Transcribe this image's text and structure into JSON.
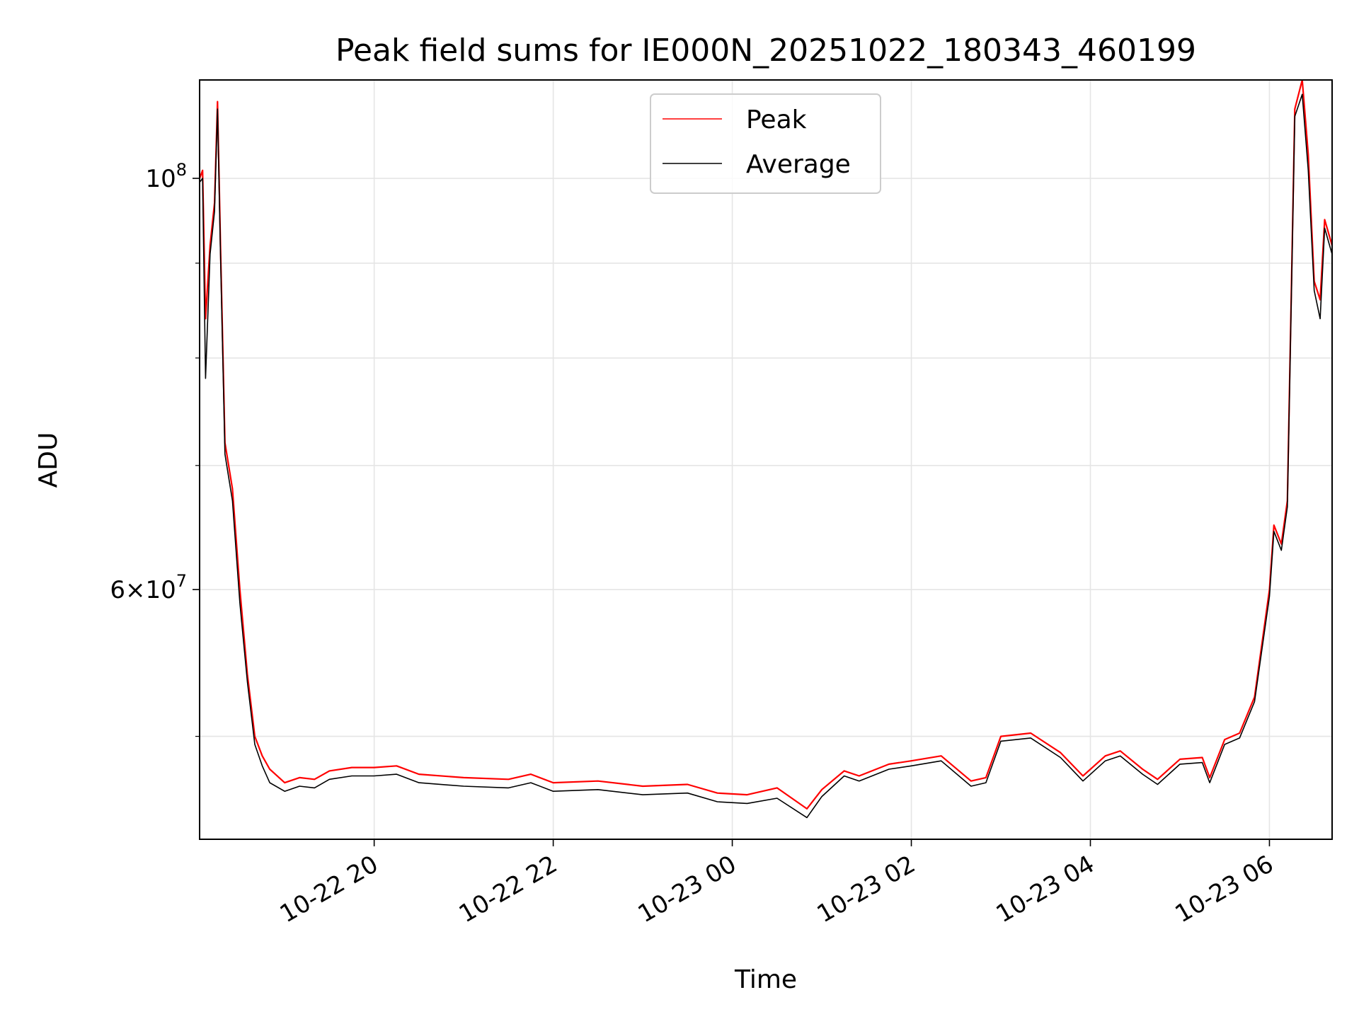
{
  "chart_data": {
    "type": "line",
    "title": "Peak field sums for IE000N_20251022_180343_460199",
    "xlabel": "Time",
    "ylabel": "ADU",
    "yscale": "log",
    "ylim": [
      44000000,
      113000000
    ],
    "xlim": [
      "2025-10-22 18:03",
      "2025-10-23 06:42"
    ],
    "grid": true,
    "legend": {
      "loc": "upper center"
    },
    "x_ticks": [
      {
        "t": "2025-10-22 20:00",
        "label": "10-22 20"
      },
      {
        "t": "2025-10-22 22:00",
        "label": "10-22 22"
      },
      {
        "t": "2025-10-23 00:00",
        "label": "10-23 00"
      },
      {
        "t": "2025-10-23 02:00",
        "label": "10-23 02"
      },
      {
        "t": "2025-10-23 04:00",
        "label": "10-23 04"
      },
      {
        "t": "2025-10-23 06:00",
        "label": "10-23 06"
      }
    ],
    "y_ticks_major": [
      {
        "value": 60000000,
        "mantissa": "6",
        "exp": "7"
      },
      {
        "value": 100000000,
        "mantissa": "",
        "exp": "8"
      }
    ],
    "y_ticks_minor": [
      50000000,
      70000000,
      80000000,
      90000000
    ],
    "series": [
      {
        "name": "Peak",
        "color": "#ff0000",
        "points": [
          [
            "2025-10-22 18:03",
            100000000
          ],
          [
            "2025-10-22 18:05",
            101000000
          ],
          [
            "2025-10-22 18:07",
            84000000
          ],
          [
            "2025-10-22 18:10",
            92000000
          ],
          [
            "2025-10-22 18:13",
            97000000
          ],
          [
            "2025-10-22 18:15",
            110000000
          ],
          [
            "2025-10-22 18:17",
            92000000
          ],
          [
            "2025-10-22 18:20",
            72000000
          ],
          [
            "2025-10-22 18:25",
            68000000
          ],
          [
            "2025-10-22 18:30",
            60000000
          ],
          [
            "2025-10-22 18:35",
            54000000
          ],
          [
            "2025-10-22 18:40",
            50000000
          ],
          [
            "2025-10-22 18:45",
            48800000
          ],
          [
            "2025-10-22 18:50",
            48000000
          ],
          [
            "2025-10-22 19:00",
            47200000
          ],
          [
            "2025-10-22 19:10",
            47500000
          ],
          [
            "2025-10-22 19:20",
            47400000
          ],
          [
            "2025-10-22 19:30",
            47900000
          ],
          [
            "2025-10-22 19:45",
            48100000
          ],
          [
            "2025-10-22 20:00",
            48100000
          ],
          [
            "2025-10-22 20:15",
            48200000
          ],
          [
            "2025-10-22 20:30",
            47700000
          ],
          [
            "2025-10-22 21:00",
            47500000
          ],
          [
            "2025-10-22 21:30",
            47400000
          ],
          [
            "2025-10-22 21:45",
            47700000
          ],
          [
            "2025-10-22 22:00",
            47200000
          ],
          [
            "2025-10-22 22:30",
            47300000
          ],
          [
            "2025-10-22 23:00",
            47000000
          ],
          [
            "2025-10-22 23:30",
            47100000
          ],
          [
            "2025-10-22 23:50",
            46600000
          ],
          [
            "2025-10-23 00:10",
            46500000
          ],
          [
            "2025-10-23 00:30",
            46900000
          ],
          [
            "2025-10-23 00:50",
            45700000
          ],
          [
            "2025-10-23 01:00",
            46800000
          ],
          [
            "2025-10-23 01:15",
            47900000
          ],
          [
            "2025-10-23 01:25",
            47600000
          ],
          [
            "2025-10-23 01:45",
            48300000
          ],
          [
            "2025-10-23 02:00",
            48500000
          ],
          [
            "2025-10-23 02:20",
            48800000
          ],
          [
            "2025-10-23 02:40",
            47300000
          ],
          [
            "2025-10-23 02:50",
            47500000
          ],
          [
            "2025-10-23 03:00",
            50000000
          ],
          [
            "2025-10-23 03:20",
            50200000
          ],
          [
            "2025-10-23 03:40",
            49000000
          ],
          [
            "2025-10-23 03:55",
            47600000
          ],
          [
            "2025-10-23 04:10",
            48800000
          ],
          [
            "2025-10-23 04:20",
            49100000
          ],
          [
            "2025-10-23 04:35",
            48000000
          ],
          [
            "2025-10-23 04:45",
            47400000
          ],
          [
            "2025-10-23 05:00",
            48600000
          ],
          [
            "2025-10-23 05:15",
            48700000
          ],
          [
            "2025-10-23 05:20",
            47500000
          ],
          [
            "2025-10-23 05:30",
            49800000
          ],
          [
            "2025-10-23 05:40",
            50200000
          ],
          [
            "2025-10-23 05:50",
            52500000
          ],
          [
            "2025-10-23 06:00",
            60000000
          ],
          [
            "2025-10-23 06:03",
            65000000
          ],
          [
            "2025-10-23 06:08",
            63500000
          ],
          [
            "2025-10-23 06:12",
            67000000
          ],
          [
            "2025-10-23 06:17",
            109000000
          ],
          [
            "2025-10-23 06:22",
            113000000
          ],
          [
            "2025-10-23 06:26",
            103000000
          ],
          [
            "2025-10-23 06:30",
            88000000
          ],
          [
            "2025-10-23 06:34",
            86000000
          ],
          [
            "2025-10-23 06:37",
            95000000
          ],
          [
            "2025-10-23 06:42",
            92000000
          ]
        ]
      },
      {
        "name": "Average",
        "color": "#000000",
        "points": [
          [
            "2025-10-22 18:03",
            99500000
          ],
          [
            "2025-10-22 18:05",
            100000000
          ],
          [
            "2025-10-22 18:07",
            78000000
          ],
          [
            "2025-10-22 18:10",
            91000000
          ],
          [
            "2025-10-22 18:13",
            96000000
          ],
          [
            "2025-10-22 18:15",
            109000000
          ],
          [
            "2025-10-22 18:17",
            91000000
          ],
          [
            "2025-10-22 18:20",
            71000000
          ],
          [
            "2025-10-22 18:25",
            67000000
          ],
          [
            "2025-10-22 18:30",
            59000000
          ],
          [
            "2025-10-22 18:35",
            53500000
          ],
          [
            "2025-10-22 18:40",
            49500000
          ],
          [
            "2025-10-22 18:45",
            48200000
          ],
          [
            "2025-10-22 18:50",
            47200000
          ],
          [
            "2025-10-22 19:00",
            46700000
          ],
          [
            "2025-10-22 19:10",
            47000000
          ],
          [
            "2025-10-22 19:20",
            46900000
          ],
          [
            "2025-10-22 19:30",
            47400000
          ],
          [
            "2025-10-22 19:45",
            47600000
          ],
          [
            "2025-10-22 20:00",
            47600000
          ],
          [
            "2025-10-22 20:15",
            47700000
          ],
          [
            "2025-10-22 20:30",
            47200000
          ],
          [
            "2025-10-22 21:00",
            47000000
          ],
          [
            "2025-10-22 21:30",
            46900000
          ],
          [
            "2025-10-22 21:45",
            47200000
          ],
          [
            "2025-10-22 22:00",
            46700000
          ],
          [
            "2025-10-22 22:30",
            46800000
          ],
          [
            "2025-10-22 23:00",
            46500000
          ],
          [
            "2025-10-22 23:30",
            46600000
          ],
          [
            "2025-10-22 23:50",
            46100000
          ],
          [
            "2025-10-23 00:10",
            46000000
          ],
          [
            "2025-10-23 00:30",
            46300000
          ],
          [
            "2025-10-23 00:50",
            45200000
          ],
          [
            "2025-10-23 01:00",
            46400000
          ],
          [
            "2025-10-23 01:15",
            47600000
          ],
          [
            "2025-10-23 01:25",
            47300000
          ],
          [
            "2025-10-23 01:45",
            48000000
          ],
          [
            "2025-10-23 02:00",
            48200000
          ],
          [
            "2025-10-23 02:20",
            48500000
          ],
          [
            "2025-10-23 02:40",
            47000000
          ],
          [
            "2025-10-23 02:50",
            47200000
          ],
          [
            "2025-10-23 03:00",
            49700000
          ],
          [
            "2025-10-23 03:20",
            49900000
          ],
          [
            "2025-10-23 03:40",
            48700000
          ],
          [
            "2025-10-23 03:55",
            47300000
          ],
          [
            "2025-10-23 04:10",
            48500000
          ],
          [
            "2025-10-23 04:20",
            48800000
          ],
          [
            "2025-10-23 04:35",
            47700000
          ],
          [
            "2025-10-23 04:45",
            47100000
          ],
          [
            "2025-10-23 05:00",
            48300000
          ],
          [
            "2025-10-23 05:15",
            48400000
          ],
          [
            "2025-10-23 05:20",
            47200000
          ],
          [
            "2025-10-23 05:30",
            49500000
          ],
          [
            "2025-10-23 05:40",
            49900000
          ],
          [
            "2025-10-23 05:50",
            52200000
          ],
          [
            "2025-10-23 06:00",
            59500000
          ],
          [
            "2025-10-23 06:03",
            64500000
          ],
          [
            "2025-10-23 06:08",
            63000000
          ],
          [
            "2025-10-23 06:12",
            66500000
          ],
          [
            "2025-10-23 06:17",
            108000000
          ],
          [
            "2025-10-23 06:22",
            111000000
          ],
          [
            "2025-10-23 06:26",
            101000000
          ],
          [
            "2025-10-23 06:30",
            87000000
          ],
          [
            "2025-10-23 06:34",
            84000000
          ],
          [
            "2025-10-23 06:37",
            94000000
          ],
          [
            "2025-10-23 06:42",
            91000000
          ]
        ]
      }
    ]
  }
}
